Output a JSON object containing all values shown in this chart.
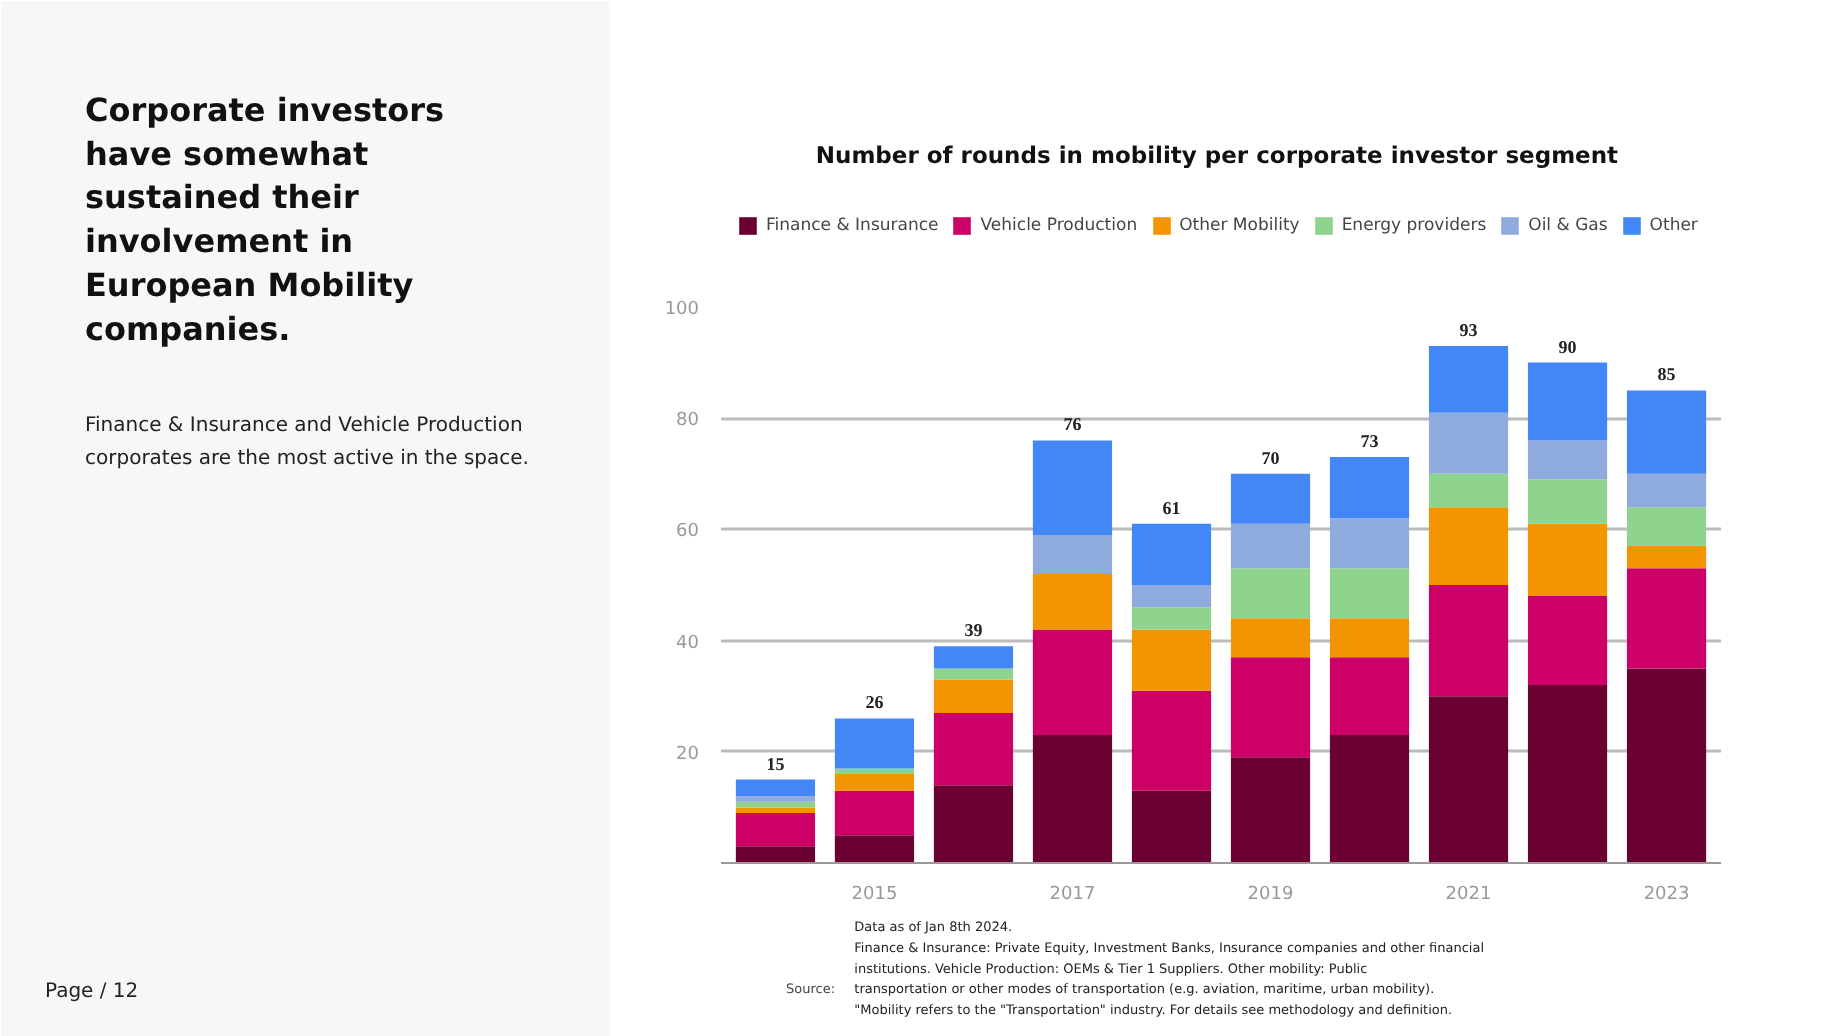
{
  "chart_data": {
    "type": "bar",
    "stacked": true,
    "title": "Number of rounds in mobility per corporate investor segment",
    "categories": [
      null,
      "2015",
      null,
      "2017",
      null,
      "2019",
      null,
      "2021",
      null,
      "2023"
    ],
    "series": [
      {
        "name": "Finance & Insurance",
        "color": "#6b0033",
        "values": [
          3,
          5,
          14,
          23,
          13,
          19,
          23,
          30,
          32,
          35
        ]
      },
      {
        "name": "Vehicle Production",
        "color": "#cc0066",
        "values": [
          6,
          8,
          13,
          19,
          18,
          18,
          14,
          20,
          16,
          18
        ]
      },
      {
        "name": "Other Mobility",
        "color": "#f29500",
        "values": [
          1,
          3,
          6,
          10,
          11,
          7,
          7,
          14,
          13,
          4
        ]
      },
      {
        "name": "Energy providers",
        "color": "#8ed38e",
        "values": [
          1,
          1,
          2,
          0,
          4,
          9,
          9,
          6,
          8,
          7
        ]
      },
      {
        "name": "Oil & Gas",
        "color": "#8faadc",
        "values": [
          1,
          0,
          0,
          7,
          4,
          8,
          9,
          11,
          7,
          6
        ]
      },
      {
        "name": "Other",
        "color": "#4287f5",
        "values": [
          3,
          9,
          4,
          17,
          11,
          9,
          11,
          12,
          14,
          15
        ]
      }
    ],
    "totals": [
      "15",
      "26",
      "39",
      "76",
      "61",
      "70",
      "73",
      "93",
      "90",
      "85"
    ],
    "ylim": [
      0,
      100
    ],
    "yticks": [
      20,
      40,
      60,
      80,
      100
    ],
    "grid": "y",
    "legend": "top",
    "annotations": [
      "Corporate investors have somewhat sustained their involvement in European Mobility companies.",
      "Finance & Insurance and Vehicle Production corporates are the most active in the space.",
      "Source:",
      "Data as of Jan 8th 2024.",
      "Finance & Insurance: Private Equity, Investment Banks, Insurance companies and other financial institutions. Vehicle Production: OEMs & Tier 1 Suppliers. Other mobility: Public transportation or other modes of transportation (e.g. aviation, maritime, urban mobility).",
      "\"Mobility refers to the \"Transportation\" industry. For details see methodology and definition.",
      "Page / 12"
    ]
  }
}
